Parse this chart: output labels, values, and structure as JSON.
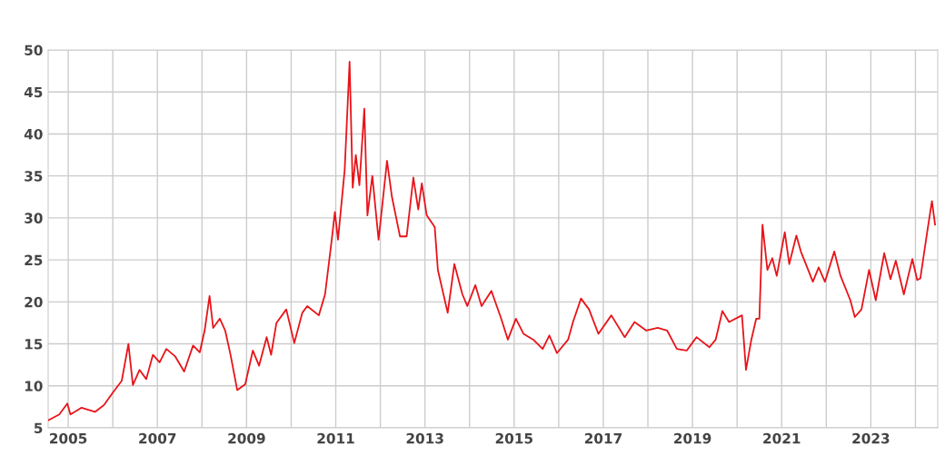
{
  "chart_data": {
    "type": "line",
    "x": [
      2004.55,
      2004.8,
      2004.98,
      2005.05,
      2005.3,
      2005.6,
      2005.8,
      2006.0,
      2006.2,
      2006.35,
      2006.45,
      2006.6,
      2006.75,
      2006.9,
      2007.05,
      2007.2,
      2007.4,
      2007.6,
      2007.8,
      2007.95,
      2008.06,
      2008.17,
      2008.25,
      2008.4,
      2008.52,
      2008.64,
      2008.79,
      2008.97,
      2009.14,
      2009.28,
      2009.45,
      2009.55,
      2009.67,
      2009.89,
      2010.07,
      2010.25,
      2010.36,
      2010.62,
      2010.76,
      2010.91,
      2010.98,
      2011.05,
      2011.2,
      2011.31,
      2011.38,
      2011.45,
      2011.53,
      2011.64,
      2011.71,
      2011.82,
      2011.96,
      2012.15,
      2012.26,
      2012.44,
      2012.59,
      2012.74,
      2012.85,
      2012.93,
      2013.04,
      2013.22,
      2013.29,
      2013.51,
      2013.66,
      2013.84,
      2013.95,
      2014.13,
      2014.27,
      2014.49,
      2014.71,
      2014.86,
      2015.04,
      2015.21,
      2015.43,
      2015.64,
      2015.79,
      2015.96,
      2016.21,
      2016.32,
      2016.5,
      2016.68,
      2016.89,
      2017.18,
      2017.48,
      2017.7,
      2017.96,
      2018.22,
      2018.43,
      2018.65,
      2018.87,
      2019.09,
      2019.38,
      2019.52,
      2019.67,
      2019.82,
      2020.11,
      2020.2,
      2020.32,
      2020.43,
      2020.5,
      2020.57,
      2020.68,
      2020.79,
      2020.89,
      2021.07,
      2021.17,
      2021.33,
      2021.43,
      2021.7,
      2021.83,
      2021.97,
      2022.18,
      2022.32,
      2022.54,
      2022.64,
      2022.79,
      2022.96,
      2023.11,
      2023.3,
      2023.44,
      2023.56,
      2023.74,
      2023.93,
      2024.04,
      2024.11,
      2024.26,
      2024.37,
      2024.44
    ],
    "series": [
      {
        "color": "#e8141a",
        "values": [
          5.9,
          6.6,
          7.9,
          6.6,
          7.4,
          6.9,
          7.7,
          9.2,
          10.6,
          15.0,
          10.1,
          11.9,
          10.8,
          13.7,
          12.8,
          14.4,
          13.5,
          11.7,
          14.8,
          14.0,
          16.6,
          20.7,
          16.9,
          18.0,
          16.6,
          13.7,
          9.5,
          10.2,
          14.2,
          12.4,
          15.8,
          13.7,
          17.5,
          19.1,
          15.1,
          18.7,
          19.5,
          18.4,
          20.9,
          27.4,
          30.7,
          27.4,
          35.7,
          48.6,
          33.6,
          37.5,
          33.9,
          43.0,
          30.3,
          35.0,
          27.4,
          36.8,
          32.5,
          27.8,
          27.8,
          34.8,
          31.0,
          34.1,
          30.3,
          28.9,
          23.8,
          18.7,
          24.5,
          20.9,
          19.5,
          22.0,
          19.5,
          21.3,
          18.0,
          15.5,
          18.0,
          16.2,
          15.5,
          14.4,
          16.0,
          13.9,
          15.5,
          17.6,
          20.4,
          19.1,
          16.2,
          18.4,
          15.8,
          17.6,
          16.6,
          16.9,
          16.6,
          14.4,
          14.2,
          15.8,
          14.6,
          15.5,
          18.9,
          17.6,
          18.4,
          11.9,
          15.5,
          18.0,
          18.0,
          29.2,
          23.8,
          25.2,
          23.1,
          28.3,
          24.5,
          27.9,
          26.0,
          22.4,
          24.1,
          22.4,
          26.0,
          23.1,
          20.2,
          18.2,
          19.1,
          23.8,
          20.2,
          25.8,
          22.7,
          24.9,
          20.9,
          25.1,
          22.6,
          22.8,
          28.2,
          32.0,
          29.2
        ]
      }
    ],
    "xlim": [
      2004.55,
      2024.5
    ],
    "xticks": [
      2005,
      {
        "value": 2006,
        "label": null
      },
      2007,
      {
        "value": 2008,
        "label": null
      },
      2009,
      {
        "value": 2010,
        "label": null
      },
      2011,
      {
        "value": 2012,
        "label": null
      },
      2013,
      {
        "value": 2014,
        "label": null
      },
      2015,
      {
        "value": 2016,
        "label": null
      },
      2017,
      {
        "value": 2018,
        "label": null
      },
      2019,
      {
        "value": 2020,
        "label": null
      },
      2021,
      {
        "value": 2022,
        "label": null
      },
      2023,
      {
        "value": 2024,
        "label": null
      }
    ],
    "ylim": [
      5,
      50
    ],
    "yticks": [
      5,
      10,
      15,
      20,
      25,
      30,
      35,
      40,
      45,
      50
    ],
    "grid": true,
    "marker": "none",
    "line_style": "solid"
  }
}
